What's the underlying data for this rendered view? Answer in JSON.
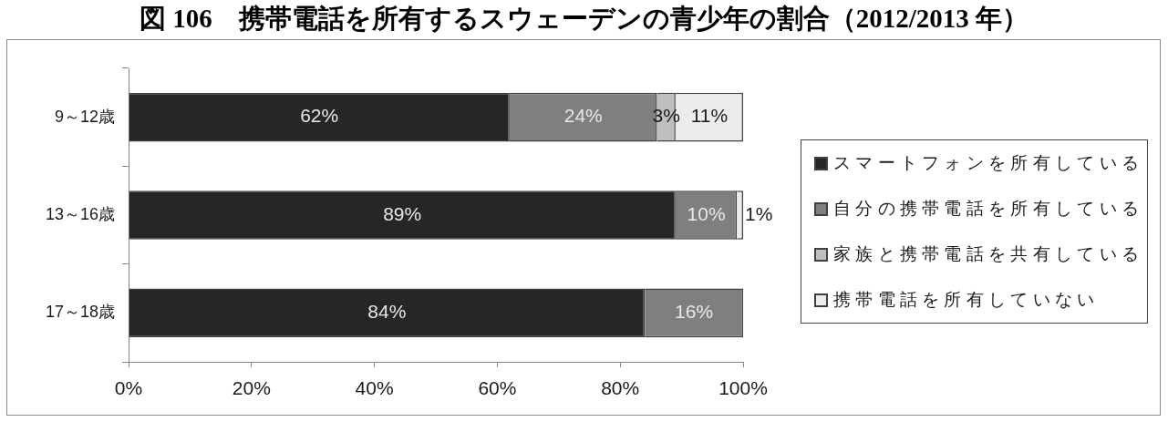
{
  "chart_data": {
    "type": "bar",
    "orientation": "horizontal",
    "stacked": true,
    "title": "図 106　携帯電話を所有するスウェーデンの青少年の割合（2012/2013 年）",
    "categories": [
      "9～12歳",
      "13～16歳",
      "17～18歳"
    ],
    "series": [
      {
        "name": "スマートフォンを所有している",
        "color": "#262626",
        "values": [
          62,
          89,
          84
        ],
        "value_labels": [
          "62%",
          "89%",
          "84%"
        ]
      },
      {
        "name": "自分の携帯電話を所有している",
        "color": "#7f7f7f",
        "values": [
          24,
          10,
          16
        ],
        "value_labels": [
          "24%",
          "10%",
          "16%"
        ]
      },
      {
        "name": "家族と携帯電話を共有している",
        "color": "#bfbfbf",
        "values": [
          3,
          null,
          null
        ],
        "value_labels": [
          "3%",
          null,
          null
        ]
      },
      {
        "name": "携帯電話を所有していない",
        "color": "#ececec",
        "values": [
          11,
          1,
          null
        ],
        "value_labels": [
          "11%",
          "1%",
          null
        ]
      }
    ],
    "xlim": [
      0,
      100
    ],
    "xticks": [
      {
        "value": 0,
        "label": "0%"
      },
      {
        "value": 20,
        "label": "20%"
      },
      {
        "value": 40,
        "label": "40%"
      },
      {
        "value": 60,
        "label": "60%"
      },
      {
        "value": 80,
        "label": "80%"
      },
      {
        "value": 100,
        "label": "100%"
      }
    ],
    "grid": false,
    "legend": "right"
  }
}
